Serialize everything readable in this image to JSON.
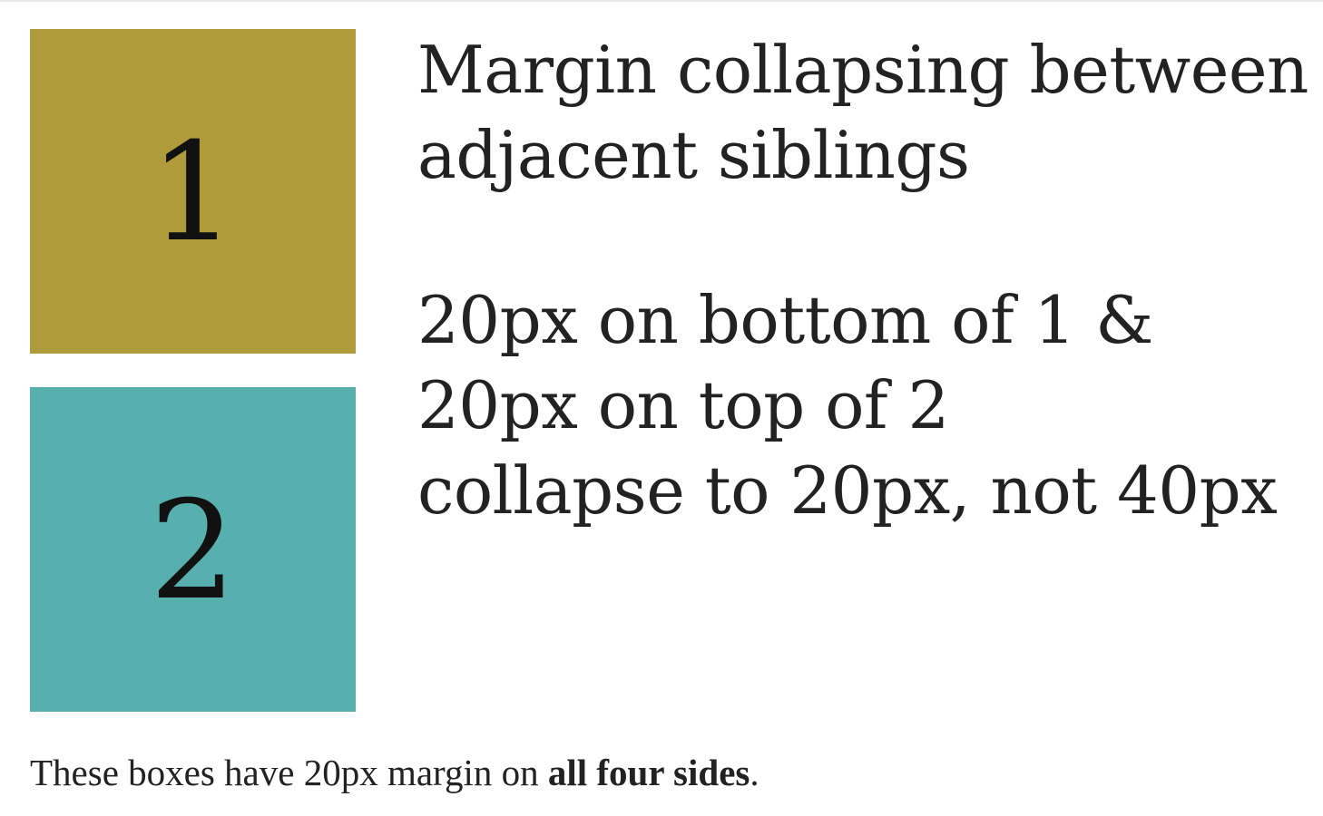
{
  "boxes": [
    {
      "label": "1",
      "color": "#af9b3a"
    },
    {
      "label": "2",
      "color": "#57b0ae"
    }
  ],
  "heading": "Margin collapsing between adjacent siblings",
  "explanation": {
    "line1": "20px on bottom of 1 &",
    "line2": "20px on top of 2",
    "line3": "collapse to 20px, not 40px"
  },
  "caption": {
    "prefix": "These boxes have 20px margin on ",
    "bold": "all four sides",
    "suffix": "."
  }
}
